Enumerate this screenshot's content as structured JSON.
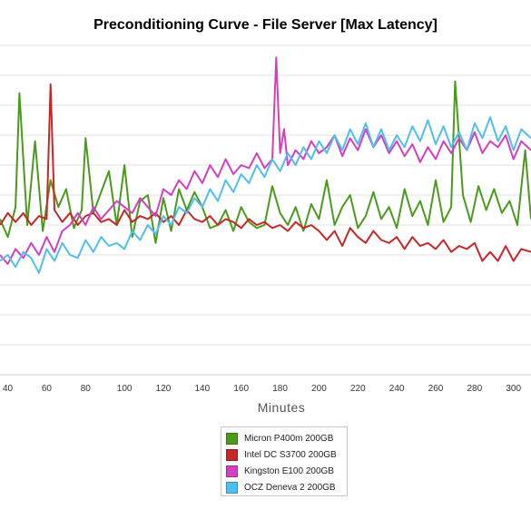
{
  "chart_data": {
    "type": "line",
    "title": "Preconditioning Curve - File Server [Max Latency]",
    "xlabel": "Minutes",
    "ylabel": "",
    "x_ticks": [
      40,
      60,
      80,
      100,
      120,
      140,
      160,
      180,
      200,
      220,
      240,
      260,
      280,
      300
    ],
    "xlim": [
      36,
      309
    ],
    "ylim": [
      0,
      11
    ],
    "grid": "horizontal",
    "legend_position": "bottom-center",
    "series": [
      {
        "name": "Micron P400m 200GB",
        "color": "#4a9a1c",
        "x": [
          36,
          40,
          44,
          46,
          50,
          54,
          58,
          62,
          66,
          70,
          74,
          78,
          80,
          84,
          88,
          92,
          96,
          100,
          104,
          108,
          112,
          116,
          120,
          124,
          128,
          132,
          136,
          140,
          144,
          148,
          152,
          156,
          160,
          164,
          168,
          172,
          176,
          180,
          184,
          188,
          192,
          196,
          200,
          204,
          208,
          212,
          216,
          220,
          224,
          228,
          232,
          236,
          240,
          244,
          248,
          252,
          256,
          260,
          264,
          268,
          270,
          274,
          278,
          282,
          286,
          290,
          294,
          298,
          302,
          306,
          309
        ],
        "y": [
          5.2,
          4.6,
          5.6,
          9.4,
          5.0,
          7.8,
          4.8,
          6.5,
          5.6,
          6.2,
          4.9,
          5.5,
          7.9,
          5.4,
          6.1,
          6.8,
          5.0,
          7.0,
          4.6,
          5.8,
          6.0,
          4.4,
          5.9,
          4.8,
          6.2,
          5.5,
          6.1,
          5.6,
          4.9,
          5.0,
          5.5,
          4.8,
          5.6,
          5.1,
          4.9,
          5.0,
          6.3,
          5.4,
          5.0,
          5.6,
          4.8,
          5.7,
          5.2,
          6.5,
          5.0,
          5.6,
          6.0,
          4.9,
          5.3,
          6.1,
          5.2,
          5.6,
          4.9,
          6.2,
          5.3,
          5.8,
          5.0,
          6.5,
          5.1,
          5.6,
          9.8,
          6.0,
          5.1,
          6.3,
          5.5,
          6.2,
          5.4,
          5.8,
          5.0,
          7.5,
          5.2
        ]
      },
      {
        "name": "Intel DC S3700 200GB",
        "color": "#c62828",
        "x": [
          36,
          40,
          44,
          48,
          52,
          56,
          60,
          62,
          64,
          68,
          72,
          76,
          80,
          84,
          88,
          92,
          96,
          100,
          104,
          108,
          112,
          116,
          120,
          124,
          128,
          132,
          136,
          140,
          144,
          148,
          152,
          156,
          160,
          164,
          168,
          172,
          176,
          180,
          184,
          188,
          192,
          196,
          200,
          204,
          208,
          212,
          216,
          220,
          224,
          228,
          232,
          236,
          240,
          244,
          248,
          252,
          256,
          260,
          264,
          268,
          272,
          276,
          280,
          284,
          288,
          292,
          296,
          300,
          304,
          309
        ],
        "y": [
          5.0,
          5.4,
          5.1,
          5.4,
          5.0,
          5.3,
          5.2,
          9.7,
          5.5,
          5.1,
          5.4,
          5.0,
          5.3,
          5.4,
          5.1,
          5.2,
          5.0,
          5.5,
          5.1,
          5.3,
          5.2,
          5.4,
          5.1,
          5.3,
          5.0,
          5.5,
          5.2,
          5.1,
          5.3,
          5.0,
          5.2,
          5.1,
          4.9,
          5.2,
          5.0,
          5.1,
          4.9,
          5.0,
          4.8,
          5.1,
          4.9,
          5.0,
          4.8,
          4.5,
          4.8,
          4.3,
          4.9,
          4.6,
          4.4,
          4.8,
          4.5,
          4.4,
          4.6,
          4.2,
          4.6,
          4.3,
          4.4,
          4.2,
          4.5,
          4.1,
          4.3,
          4.2,
          4.4,
          3.8,
          4.1,
          3.8,
          4.3,
          3.8,
          4.2,
          4.1
        ]
      },
      {
        "name": "Kingston E100 200GB",
        "color": "#d43fc1",
        "x": [
          36,
          40,
          44,
          48,
          52,
          56,
          60,
          64,
          68,
          72,
          76,
          80,
          84,
          88,
          92,
          96,
          100,
          104,
          108,
          112,
          116,
          120,
          124,
          128,
          132,
          136,
          140,
          144,
          148,
          152,
          156,
          160,
          164,
          168,
          172,
          176,
          178,
          180,
          182,
          184,
          188,
          192,
          196,
          200,
          204,
          208,
          212,
          216,
          220,
          224,
          228,
          232,
          236,
          240,
          244,
          248,
          252,
          256,
          260,
          264,
          268,
          272,
          276,
          280,
          284,
          288,
          292,
          296,
          300,
          304,
          309
        ],
        "y": [
          4.0,
          3.7,
          4.2,
          3.9,
          4.4,
          4.0,
          4.6,
          4.1,
          4.8,
          5.0,
          5.4,
          5.0,
          5.6,
          5.2,
          5.5,
          5.8,
          5.6,
          5.4,
          5.9,
          5.6,
          5.3,
          6.2,
          6.0,
          6.5,
          6.2,
          6.8,
          6.4,
          7.0,
          6.6,
          7.2,
          6.7,
          7.0,
          6.9,
          7.4,
          6.9,
          7.2,
          10.6,
          7.4,
          8.2,
          7.0,
          7.5,
          7.2,
          7.8,
          7.4,
          7.6,
          8.0,
          7.3,
          7.9,
          7.5,
          8.2,
          7.6,
          8.0,
          7.4,
          7.8,
          7.3,
          7.7,
          7.1,
          7.6,
          7.2,
          7.8,
          7.4,
          7.9,
          7.5,
          8.1,
          7.4,
          7.8,
          7.6,
          8.0,
          7.2,
          7.8,
          7.5
        ]
      },
      {
        "name": "OCZ Deneva 2 200GB",
        "color": "#4fbfec",
        "x": [
          36,
          40,
          44,
          48,
          52,
          56,
          60,
          64,
          68,
          72,
          76,
          80,
          84,
          88,
          92,
          96,
          100,
          104,
          108,
          112,
          116,
          120,
          124,
          128,
          132,
          136,
          140,
          144,
          148,
          152,
          156,
          160,
          164,
          168,
          172,
          176,
          180,
          184,
          188,
          192,
          196,
          200,
          204,
          208,
          212,
          216,
          220,
          224,
          228,
          232,
          236,
          240,
          244,
          248,
          252,
          256,
          260,
          264,
          268,
          272,
          276,
          280,
          284,
          288,
          292,
          296,
          300,
          304,
          309
        ],
        "y": [
          3.8,
          4.0,
          3.6,
          4.1,
          3.9,
          3.4,
          4.2,
          3.8,
          4.4,
          4.0,
          3.9,
          4.5,
          4.1,
          4.6,
          4.3,
          4.4,
          4.2,
          4.8,
          4.5,
          5.0,
          4.7,
          5.3,
          5.0,
          5.6,
          5.4,
          5.9,
          5.6,
          6.2,
          5.8,
          6.5,
          6.1,
          6.7,
          6.4,
          7.0,
          6.6,
          7.2,
          6.8,
          7.4,
          7.0,
          7.6,
          7.2,
          7.8,
          7.4,
          8.0,
          7.5,
          8.2,
          7.7,
          8.4,
          7.6,
          8.2,
          7.5,
          8.0,
          7.6,
          8.3,
          7.8,
          8.5,
          7.7,
          8.3,
          7.6,
          8.1,
          7.5,
          8.4,
          7.9,
          8.6,
          7.8,
          8.3,
          7.5,
          8.2,
          7.9
        ]
      }
    ]
  }
}
